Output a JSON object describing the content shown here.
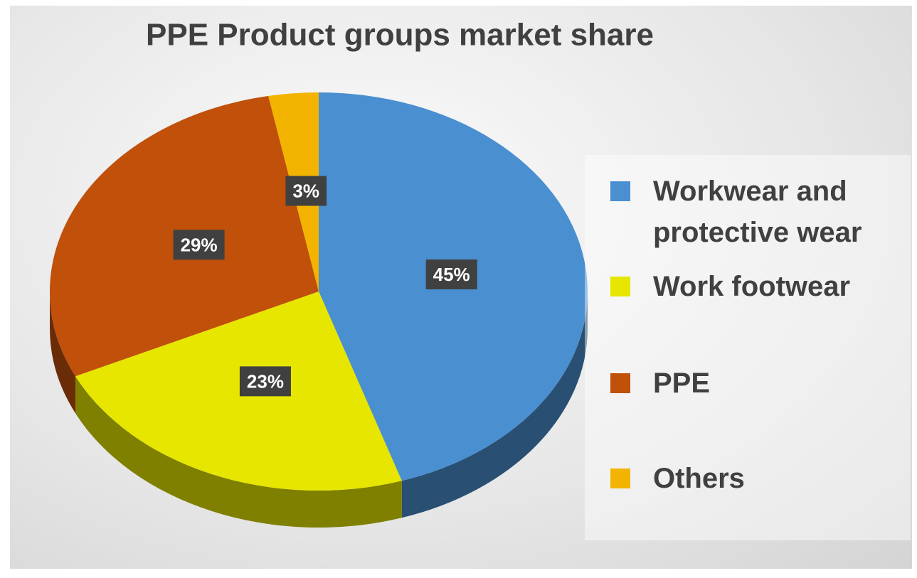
{
  "chart_data": {
    "type": "pie",
    "title": "PPE Product groups market share",
    "categories": [
      "Workwear and protective wear",
      "Work footwear",
      "PPE",
      "Others"
    ],
    "values": [
      45,
      23,
      29,
      3
    ],
    "value_labels": [
      "45%",
      "23%",
      "29%",
      "3%"
    ],
    "colors": [
      "#4a8fd0",
      "#e6e600",
      "#c0500a",
      "#f2b400"
    ]
  }
}
